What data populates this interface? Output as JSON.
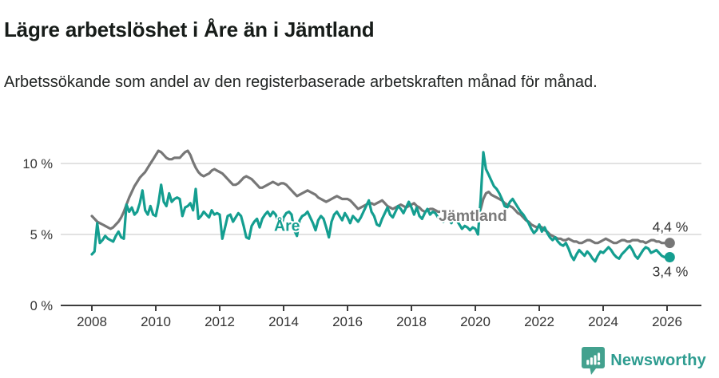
{
  "header": {
    "title": "Lägre arbetslöshet i Åre än i Jämtland",
    "subtitle": "Arbetssökande som andel av den registerbaserade arbetskraften månad för månad."
  },
  "footer": {
    "brand": "Newsworthy",
    "logo_icon": "newsworthy-speech-bubble-bar-chart-icon"
  },
  "colors": {
    "are": "#149e90",
    "jamtland": "#777777",
    "jamtland_label": "#7a7a7a",
    "grid": "#d9d9d9",
    "axis": "#3c3c3c",
    "tick_text": "#333333",
    "end_label_text": "#333333",
    "brand_teal": "#2e9c90",
    "logo_fill": "#43a18e"
  },
  "chart_data": {
    "type": "line",
    "title": "Lägre arbetslöshet i Åre än i Jämtland",
    "subtitle": "Arbetssökande som andel av den registerbaserade arbetskraften månad för månad.",
    "xlabel": "",
    "ylabel": "",
    "x_start_year": 2008,
    "x_interval": "monthly",
    "x_end": "2026-02",
    "ylim": [
      0,
      12.2
    ],
    "grid": "horizontal",
    "legend_position": "inline-labels",
    "x_ticks": [
      2008,
      2010,
      2012,
      2014,
      2016,
      2018,
      2020,
      2022,
      2024,
      2026
    ],
    "x_tick_labels": [
      "2008",
      "2010",
      "2012",
      "2014",
      "2016",
      "2018",
      "2020",
      "2022",
      "2024",
      "2026"
    ],
    "y_ticks": [
      {
        "value": 0,
        "label": "0 %"
      },
      {
        "value": 5,
        "label": "5 %"
      },
      {
        "value": 10,
        "label": "10 %"
      }
    ],
    "annotations": [
      {
        "text": "Åre",
        "x_year": 2013.7,
        "baseline_value": 5.25,
        "color_key": "are"
      },
      {
        "text": "Jämtland",
        "x_year": 2018.85,
        "baseline_value": 5.95,
        "color_key": "jamtland_label"
      }
    ],
    "series": [
      {
        "name": "Jämtland",
        "color_key": "jamtland",
        "end_label": "4,4 %",
        "end_value": 4.4,
        "values": [
          6.3,
          6.1,
          5.9,
          5.8,
          5.7,
          5.6,
          5.5,
          5.4,
          5.5,
          5.7,
          5.9,
          6.2,
          6.6,
          7.1,
          7.6,
          8.0,
          8.4,
          8.7,
          9.0,
          9.2,
          9.4,
          9.7,
          10.0,
          10.3,
          10.6,
          10.9,
          10.8,
          10.6,
          10.4,
          10.3,
          10.3,
          10.4,
          10.4,
          10.4,
          10.6,
          10.8,
          10.9,
          10.6,
          10.1,
          9.7,
          9.4,
          9.2,
          9.1,
          9.2,
          9.3,
          9.5,
          9.6,
          9.5,
          9.4,
          9.3,
          9.1,
          8.9,
          8.7,
          8.5,
          8.5,
          8.6,
          8.8,
          9.0,
          9.1,
          9.0,
          8.9,
          8.7,
          8.5,
          8.3,
          8.3,
          8.4,
          8.5,
          8.6,
          8.7,
          8.6,
          8.5,
          8.6,
          8.6,
          8.5,
          8.3,
          8.1,
          7.9,
          7.7,
          7.8,
          7.9,
          8.0,
          8.1,
          8.0,
          7.9,
          7.8,
          7.6,
          7.5,
          7.4,
          7.3,
          7.4,
          7.5,
          7.6,
          7.7,
          7.6,
          7.5,
          7.5,
          7.5,
          7.4,
          7.2,
          7.0,
          6.8,
          6.9,
          7.0,
          7.1,
          7.2,
          7.2,
          7.1,
          7.2,
          7.3,
          7.4,
          7.2,
          7.0,
          6.9,
          6.8,
          6.9,
          7.0,
          7.1,
          7.0,
          6.9,
          7.0,
          7.1,
          7.2,
          7.0,
          6.9,
          6.7,
          6.6,
          6.7,
          6.8,
          6.8,
          6.7,
          6.6,
          6.6,
          6.6,
          6.7,
          6.6,
          6.5,
          6.4,
          6.4,
          6.5,
          6.5,
          6.5,
          6.4,
          6.4,
          6.4,
          6.4,
          6.3,
          6.8,
          7.5,
          7.9,
          8.0,
          7.8,
          7.7,
          7.6,
          7.5,
          7.4,
          7.2,
          7.1,
          7.0,
          6.9,
          6.7,
          6.5,
          6.4,
          6.2,
          6.0,
          5.9,
          5.7,
          5.6,
          5.5,
          5.6,
          5.5,
          5.3,
          5.2,
          5.0,
          4.9,
          4.8,
          4.7,
          4.7,
          4.6,
          4.6,
          4.7,
          4.6,
          4.5,
          4.5,
          4.4,
          4.4,
          4.5,
          4.6,
          4.6,
          4.5,
          4.4,
          4.4,
          4.5,
          4.6,
          4.7,
          4.6,
          4.5,
          4.4,
          4.4,
          4.5,
          4.6,
          4.6,
          4.5,
          4.5,
          4.6,
          4.6,
          4.6,
          4.5,
          4.5,
          4.4,
          4.5,
          4.6,
          4.6,
          4.5,
          4.5,
          4.4,
          4.4,
          4.4,
          4.4
        ]
      },
      {
        "name": "Åre",
        "color_key": "are",
        "end_label": "3,4 %",
        "end_value": 3.4,
        "values": [
          3.6,
          3.8,
          5.8,
          4.4,
          4.6,
          4.9,
          4.7,
          4.6,
          4.5,
          4.9,
          5.2,
          4.8,
          4.7,
          7.1,
          6.6,
          6.9,
          6.4,
          6.6,
          7.2,
          8.1,
          6.7,
          6.4,
          7.0,
          6.4,
          6.3,
          7.2,
          8.5,
          7.3,
          7.0,
          7.9,
          7.3,
          7.5,
          7.6,
          7.5,
          6.3,
          6.9,
          7.0,
          7.2,
          6.7,
          8.2,
          6.1,
          6.3,
          6.6,
          6.4,
          6.2,
          6.7,
          6.4,
          6.5,
          6.4,
          4.7,
          5.5,
          6.3,
          6.4,
          5.9,
          6.2,
          6.5,
          6.3,
          5.6,
          4.8,
          4.7,
          5.6,
          5.9,
          6.1,
          5.5,
          6.1,
          6.4,
          6.6,
          6.3,
          6.6,
          6.4,
          5.9,
          5.5,
          6.2,
          6.5,
          6.6,
          6.4,
          5.3,
          4.9,
          6.0,
          6.3,
          6.4,
          6.6,
          6.2,
          5.8,
          5.3,
          6.0,
          6.3,
          6.1,
          5.5,
          4.8,
          5.9,
          6.4,
          6.6,
          6.3,
          6.0,
          6.5,
          6.2,
          5.8,
          6.3,
          6.1,
          5.9,
          6.2,
          6.6,
          7.0,
          7.4,
          6.6,
          6.3,
          5.7,
          5.6,
          6.1,
          6.5,
          6.9,
          6.4,
          6.2,
          6.6,
          7.0,
          6.8,
          6.5,
          6.9,
          7.3,
          6.9,
          6.4,
          6.9,
          6.3,
          6.1,
          6.5,
          6.8,
          6.4,
          6.6,
          6.5,
          6.2,
          6.0,
          5.9,
          6.4,
          6.1,
          5.8,
          6.2,
          6.0,
          5.7,
          5.4,
          5.6,
          5.5,
          5.3,
          5.5,
          5.4,
          5.0,
          7.5,
          10.8,
          9.6,
          9.2,
          8.8,
          8.4,
          8.2,
          7.9,
          7.5,
          7.0,
          6.9,
          7.3,
          7.5,
          7.2,
          6.9,
          6.6,
          6.4,
          6.1,
          5.8,
          5.4,
          5.1,
          5.3,
          5.7,
          5.2,
          5.5,
          5.1,
          4.8,
          4.6,
          4.8,
          4.5,
          4.3,
          4.2,
          4.4,
          4.0,
          3.5,
          3.2,
          3.6,
          3.9,
          3.7,
          3.5,
          3.8,
          3.6,
          3.3,
          3.1,
          3.5,
          3.8,
          3.7,
          3.9,
          4.1,
          3.9,
          3.6,
          3.4,
          3.3,
          3.6,
          3.8,
          4.0,
          4.2,
          3.9,
          3.5,
          3.3,
          3.6,
          3.9,
          4.1,
          4.0,
          3.7,
          3.8,
          3.9,
          3.7,
          3.5,
          3.4,
          3.5,
          3.4
        ]
      }
    ]
  }
}
